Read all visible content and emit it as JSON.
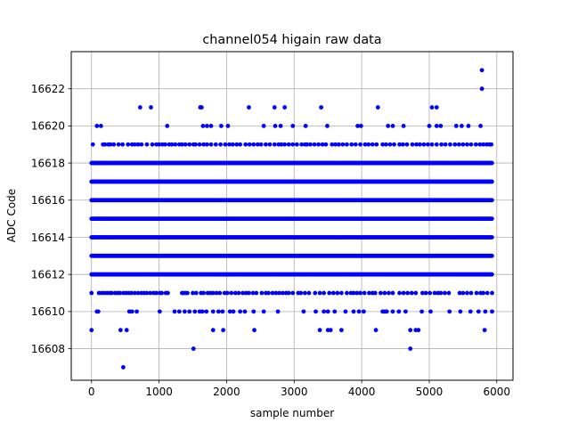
{
  "chart_data": {
    "type": "scatter",
    "title": "channel054 higain raw data",
    "xlabel": "sample number",
    "ylabel": "ADC Code",
    "xlim": [
      -300,
      6240
    ],
    "ylim": [
      16606.3,
      16624.0
    ],
    "grid": true,
    "x_ticks": [
      0,
      1000,
      2000,
      3000,
      4000,
      5000,
      6000
    ],
    "y_ticks": [
      16608,
      16610,
      16612,
      16614,
      16616,
      16618,
      16620,
      16622
    ],
    "x_tick_labels": [
      "0",
      "1000",
      "2000",
      "3000",
      "4000",
      "5000",
      "6000"
    ],
    "y_tick_labels": [
      "16608",
      "16610",
      "16612",
      "16614",
      "16616",
      "16618",
      "16620",
      "16622"
    ],
    "marker_color": "#0000ff",
    "num_samples": 5930,
    "dense_levels": [
      16612,
      16613,
      16614,
      16615,
      16616,
      16617,
      16618
    ],
    "semi_dense_levels": [
      {
        "value": 16619,
        "x": [
          20,
          170,
          200,
          250,
          280,
          330,
          400,
          460,
          540,
          600,
          640,
          690,
          740,
          820,
          900,
          960,
          1000,
          1050,
          1090,
          1150,
          1190,
          1240,
          1300,
          1340,
          1390,
          1450,
          1510,
          1540,
          1600,
          1660,
          1710,
          1770,
          1840,
          1910,
          1980,
          2040,
          2090,
          2150,
          2200,
          2280,
          2340,
          2400,
          2460,
          2510,
          2580,
          2640,
          2710,
          2770,
          2810,
          2860,
          2920,
          2980,
          3040,
          3110,
          3160,
          3190,
          3240,
          3300,
          3360,
          3420,
          3470,
          3560,
          3610,
          3660,
          3720,
          3780,
          3850,
          3910,
          3980,
          4050,
          4100,
          4160,
          4220,
          4310,
          4360,
          4420,
          4480,
          4560,
          4610,
          4670,
          4750,
          4810,
          4860,
          4920,
          4980,
          5040,
          5110,
          5180,
          5240,
          5310,
          5380,
          5440,
          5500,
          5560,
          5620,
          5690,
          5750,
          5800,
          5850,
          5890,
          5920
        ]
      },
      {
        "value": 16611,
        "x": [
          0,
          110,
          150,
          190,
          230,
          270,
          300,
          350,
          390,
          420,
          470,
          510,
          550,
          590,
          640,
          690,
          740,
          780,
          820,
          870,
          920,
          960,
          1010,
          1040,
          1100,
          1130,
          1340,
          1360,
          1390,
          1420,
          1500,
          1550,
          1620,
          1660,
          1720,
          1760,
          1800,
          1850,
          1900,
          1970,
          2010,
          2070,
          2130,
          2180,
          2240,
          2290,
          2330,
          2390,
          2440,
          2520,
          2580,
          2620,
          2680,
          2730,
          2780,
          2830,
          2880,
          2920,
          2980,
          3060,
          3100,
          3160,
          3220,
          3310,
          3380,
          3440,
          3520,
          3580,
          3640,
          3700,
          3780,
          3840,
          3880,
          3930,
          3980,
          4040,
          4110,
          4160,
          4200,
          4280,
          4340,
          4400,
          4460,
          4560,
          4620,
          4680,
          4740,
          4800,
          4900,
          4950,
          5010,
          5080,
          5130,
          5170,
          5230,
          5290,
          5450,
          5500,
          5560,
          5620,
          5700,
          5760,
          5800,
          5860,
          5930
        ]
      }
    ],
    "sparse_points": [
      [
        0,
        16609
      ],
      [
        470,
        16607
      ],
      [
        430,
        16609
      ],
      [
        520,
        16609
      ],
      [
        560,
        16610
      ],
      [
        600,
        16610
      ],
      [
        670,
        16610
      ],
      [
        1010,
        16610
      ],
      [
        1230,
        16610
      ],
      [
        1300,
        16610
      ],
      [
        1380,
        16610
      ],
      [
        1450,
        16610
      ],
      [
        1530,
        16610
      ],
      [
        1600,
        16610
      ],
      [
        1640,
        16610
      ],
      [
        1700,
        16610
      ],
      [
        1800,
        16610
      ],
      [
        1880,
        16610
      ],
      [
        1940,
        16610
      ],
      [
        2050,
        16610
      ],
      [
        2100,
        16610
      ],
      [
        2200,
        16610
      ],
      [
        2270,
        16610
      ],
      [
        2400,
        16610
      ],
      [
        2550,
        16610
      ],
      [
        2760,
        16610
      ],
      [
        3140,
        16610
      ],
      [
        3320,
        16610
      ],
      [
        3440,
        16610
      ],
      [
        3500,
        16610
      ],
      [
        3600,
        16610
      ],
      [
        3760,
        16610
      ],
      [
        3880,
        16610
      ],
      [
        3960,
        16610
      ],
      [
        4030,
        16610
      ],
      [
        4310,
        16610
      ],
      [
        4340,
        16610
      ],
      [
        4370,
        16610
      ],
      [
        4460,
        16610
      ],
      [
        4550,
        16610
      ],
      [
        4650,
        16610
      ],
      [
        4890,
        16610
      ],
      [
        5020,
        16610
      ],
      [
        5300,
        16610
      ],
      [
        5460,
        16610
      ],
      [
        5610,
        16610
      ],
      [
        5730,
        16610
      ],
      [
        5830,
        16610
      ],
      [
        5930,
        16610
      ],
      [
        80,
        16610
      ],
      [
        100,
        16610
      ],
      [
        1510,
        16608
      ],
      [
        4720,
        16608
      ],
      [
        1800,
        16609
      ],
      [
        1950,
        16609
      ],
      [
        2410,
        16609
      ],
      [
        3380,
        16609
      ],
      [
        3500,
        16609
      ],
      [
        3540,
        16609
      ],
      [
        3700,
        16609
      ],
      [
        4210,
        16609
      ],
      [
        4720,
        16609
      ],
      [
        4800,
        16609
      ],
      [
        4840,
        16609
      ],
      [
        5820,
        16609
      ],
      [
        80,
        16620
      ],
      [
        140,
        16620
      ],
      [
        1120,
        16620
      ],
      [
        1650,
        16620
      ],
      [
        1710,
        16620
      ],
      [
        1770,
        16620
      ],
      [
        1920,
        16620
      ],
      [
        2020,
        16620
      ],
      [
        2550,
        16620
      ],
      [
        2720,
        16620
      ],
      [
        2800,
        16620
      ],
      [
        2980,
        16620
      ],
      [
        3170,
        16620
      ],
      [
        3490,
        16620
      ],
      [
        3940,
        16620
      ],
      [
        3990,
        16620
      ],
      [
        4390,
        16620
      ],
      [
        4460,
        16620
      ],
      [
        4620,
        16620
      ],
      [
        5000,
        16620
      ],
      [
        5110,
        16620
      ],
      [
        5170,
        16620
      ],
      [
        5400,
        16620
      ],
      [
        5480,
        16620
      ],
      [
        5580,
        16620
      ],
      [
        5760,
        16620
      ],
      [
        720,
        16621
      ],
      [
        880,
        16621
      ],
      [
        1610,
        16621
      ],
      [
        1630,
        16621
      ],
      [
        2330,
        16621
      ],
      [
        2710,
        16621
      ],
      [
        2860,
        16621
      ],
      [
        3400,
        16621
      ],
      [
        4240,
        16621
      ],
      [
        5040,
        16621
      ],
      [
        5110,
        16621
      ],
      [
        5780,
        16622
      ],
      [
        5780,
        16623
      ]
    ]
  }
}
